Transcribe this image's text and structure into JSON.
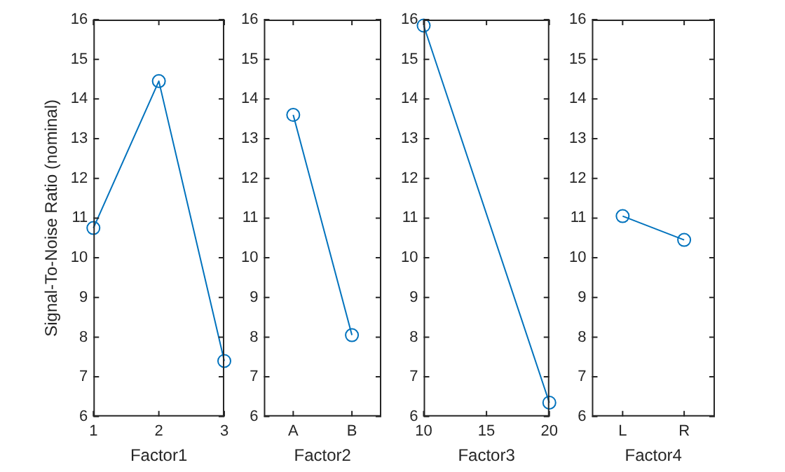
{
  "chart_data": [
    {
      "type": "line",
      "x": [
        1,
        2,
        3
      ],
      "values": [
        10.75,
        14.45,
        7.4
      ],
      "color": "#0072bd",
      "marker": "circle",
      "xlim": [
        1,
        3
      ],
      "xticks": [
        1,
        2,
        3
      ],
      "ylim": [
        6,
        16
      ],
      "yticks": [
        6,
        7,
        8,
        9,
        10,
        11,
        12,
        13,
        14,
        15,
        16
      ],
      "xlabel": "Factor1",
      "ylabel": "Signal-To-Noise Ratio (nominal)"
    },
    {
      "type": "line",
      "categories": [
        "A",
        "B"
      ],
      "values": [
        13.6,
        8.05
      ],
      "color": "#0072bd",
      "marker": "circle",
      "ylim": [
        6,
        16
      ],
      "yticks": [
        6,
        7,
        8,
        9,
        10,
        11,
        12,
        13,
        14,
        15,
        16
      ],
      "xlabel": "Factor2"
    },
    {
      "type": "line",
      "x": [
        10,
        20
      ],
      "values": [
        15.85,
        6.35
      ],
      "color": "#0072bd",
      "marker": "circle",
      "xlim": [
        10,
        20
      ],
      "xticks": [
        10,
        15,
        20
      ],
      "ylim": [
        6,
        16
      ],
      "yticks": [
        6,
        7,
        8,
        9,
        10,
        11,
        12,
        13,
        14,
        15,
        16
      ],
      "xlabel": "Factor3"
    },
    {
      "type": "line",
      "categories": [
        "L",
        "R"
      ],
      "values": [
        11.05,
        10.45
      ],
      "color": "#0072bd",
      "marker": "circle",
      "ylim": [
        6,
        16
      ],
      "yticks": [
        6,
        7,
        8,
        9,
        10,
        11,
        12,
        13,
        14,
        15,
        16
      ],
      "xlabel": "Factor4"
    }
  ]
}
